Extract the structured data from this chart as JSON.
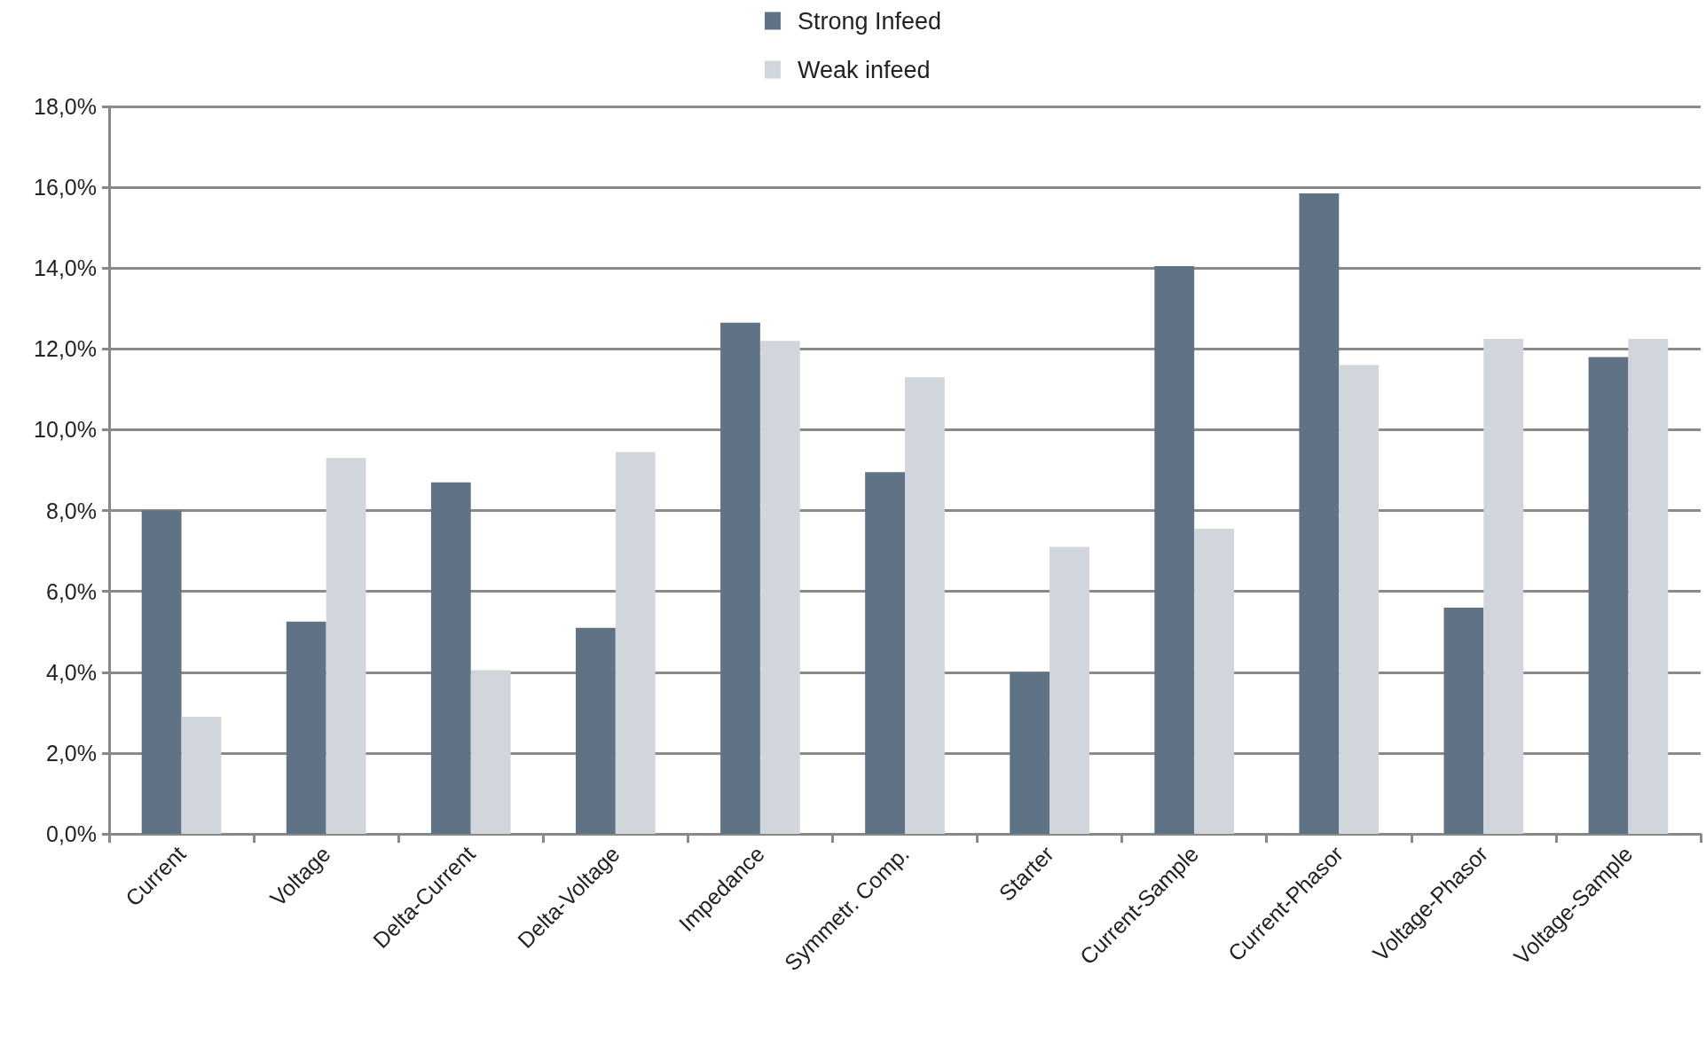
{
  "chart_data": {
    "type": "bar",
    "categories": [
      "Current",
      "Voltage",
      "Delta-Current",
      "Delta-Voltage",
      "Impedance",
      "Symmetr. Comp.",
      "Starter",
      "Current-Sample",
      "Current-Phasor",
      "Voltage-Phasor",
      "Voltage-Sample"
    ],
    "series": [
      {
        "name": "Strong Infeed",
        "color": "#5f7384",
        "values": [
          8.0,
          5.25,
          8.7,
          5.1,
          12.65,
          8.95,
          4.0,
          14.05,
          15.85,
          5.6,
          11.8
        ]
      },
      {
        "name": "Weak infeed",
        "color": "#d0d6dc",
        "values": [
          2.9,
          9.3,
          4.05,
          9.45,
          12.2,
          11.3,
          7.1,
          7.55,
          11.6,
          12.25,
          12.25
        ]
      }
    ],
    "ylim": [
      0,
      18
    ],
    "yticks": [
      {
        "value": 0,
        "label": "0,0%"
      },
      {
        "value": 2,
        "label": "2,0%"
      },
      {
        "value": 4,
        "label": "4,0%"
      },
      {
        "value": 6,
        "label": "6,0%"
      },
      {
        "value": 8,
        "label": "8,0%"
      },
      {
        "value": 10,
        "label": "10,0%"
      },
      {
        "value": 12,
        "label": "12,0%"
      },
      {
        "value": 14,
        "label": "14,0%"
      },
      {
        "value": 16,
        "label": "16,0%"
      },
      {
        "value": 18,
        "label": "18,0%"
      }
    ],
    "grid": "y",
    "legend": "top"
  }
}
